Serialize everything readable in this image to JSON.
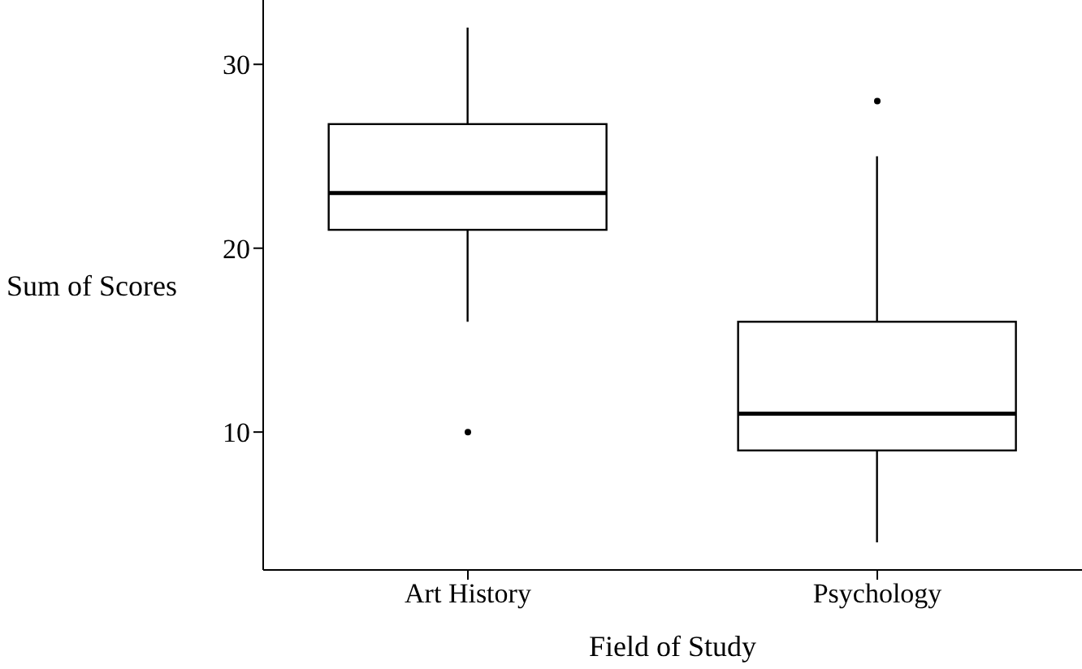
{
  "chart_data": {
    "type": "box",
    "xlabel": "Field of Study",
    "ylabel": "Sum of Scores",
    "categories": [
      "Art History",
      "Psychology"
    ],
    "boxes": [
      {
        "low": 16,
        "q1": 21,
        "median": 23,
        "q3": 26.75,
        "high": 32,
        "outliers": [
          10
        ]
      },
      {
        "low": 4,
        "q1": 9,
        "median": 11,
        "q3": 16,
        "high": 25,
        "outliers": [
          28
        ]
      }
    ],
    "ylim": [
      2.5,
      33.5
    ],
    "yticks": [
      10,
      20,
      30
    ]
  }
}
